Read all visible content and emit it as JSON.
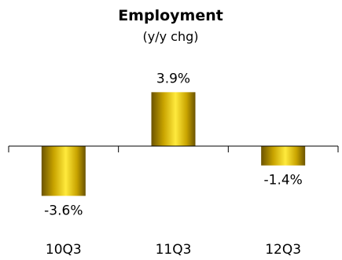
{
  "chart_data": {
    "type": "bar",
    "title": "Employment",
    "subtitle": "(y/y chg)",
    "categories": [
      "10Q3",
      "11Q3",
      "12Q3"
    ],
    "values": [
      -3.6,
      3.9,
      -1.4
    ],
    "data_labels": [
      "-3.6%",
      "3.9%",
      "-1.4%"
    ],
    "ylim": [
      -4.2,
      4.2
    ],
    "grid": false,
    "legend": "none",
    "xlabel": "",
    "ylabel": "",
    "colors": {
      "bar_dark": "#6b5300",
      "bar_mid": "#c9a400",
      "bar_light": "#ffea3d"
    }
  }
}
